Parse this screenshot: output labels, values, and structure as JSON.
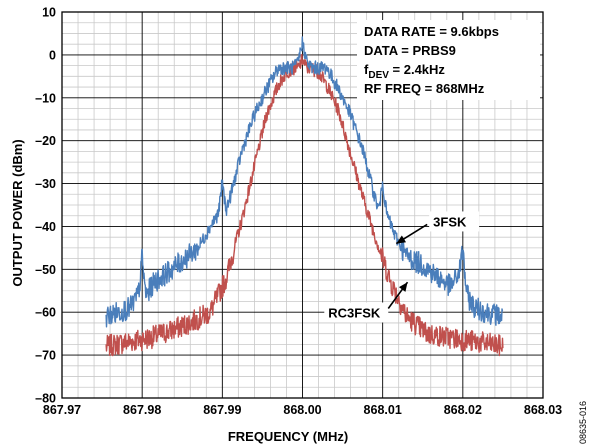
{
  "chart_data": {
    "type": "line",
    "xlabel": "FREQUENCY (MHz)",
    "ylabel": "OUTPUT POWER (dBm)",
    "xlim": [
      867.97,
      868.03
    ],
    "ylim": [
      -80,
      10
    ],
    "x_ticks": [
      "867.97",
      "867.98",
      "867.99",
      "868.00",
      "868.01",
      "868.02",
      "868.03"
    ],
    "y_ticks": [
      "10",
      "0",
      "–10",
      "–20",
      "–30",
      "–40",
      "–50",
      "–60",
      "–70",
      "–80"
    ],
    "grid": true,
    "minor_grid": true,
    "info_lines": [
      {
        "main": "DATA RATE = 9.6kbps",
        "sub": "",
        "rest": ""
      },
      {
        "main": "DATA = PRBS9",
        "sub": "",
        "rest": ""
      },
      {
        "main": "f",
        "sub": "DEV",
        "rest": " = 2.4kHz"
      },
      {
        "main": "RF FREQ = 868MHz",
        "sub": "",
        "rest": ""
      }
    ],
    "figure_id": "08635-016",
    "series": [
      {
        "name": "3FSK",
        "color": "#4a7ebb",
        "x": [
          867.9755,
          867.977,
          867.9785,
          867.9795,
          867.9798,
          867.98,
          867.9802,
          867.9805,
          867.9815,
          867.983,
          867.985,
          867.987,
          867.9885,
          867.9895,
          867.9898,
          867.99,
          867.9902,
          867.9905,
          867.991,
          867.9925,
          867.994,
          867.9955,
          867.997,
          867.998,
          867.9988,
          867.9994,
          868.0,
          868.0006,
          868.0012,
          868.002,
          868.003,
          868.0045,
          868.006,
          868.0075,
          868.009,
          868.0095,
          868.0098,
          868.01,
          868.0102,
          868.0105,
          868.0115,
          868.013,
          868.015,
          868.017,
          868.0185,
          868.0195,
          868.0198,
          868.02,
          868.0202,
          868.0205,
          868.0215,
          868.023,
          868.025
        ],
        "y": [
          -61,
          -60,
          -59,
          -56,
          -52,
          -46,
          -52,
          -56,
          -53,
          -51,
          -48,
          -45,
          -40,
          -37,
          -33,
          -29,
          -33,
          -36,
          -33,
          -22,
          -14,
          -8,
          -3,
          -3,
          -3,
          -2,
          3,
          -2,
          -3,
          -3,
          -3,
          -8,
          -14,
          -22,
          -33,
          -36,
          -33,
          -29,
          -33,
          -37,
          -42,
          -47,
          -49,
          -52,
          -54,
          -51,
          -48,
          -45,
          -50,
          -56,
          -59,
          -60,
          -61
        ]
      },
      {
        "name": "RC3FSK",
        "color": "#c0504d",
        "x": [
          867.9755,
          867.978,
          867.981,
          867.984,
          867.9865,
          867.9885,
          867.9905,
          867.9925,
          867.994,
          867.9955,
          867.997,
          867.998,
          867.999,
          867.9995,
          868.0,
          868.0005,
          868.001,
          868.002,
          868.003,
          868.0045,
          868.006,
          868.0075,
          868.009,
          868.011,
          868.013,
          868.0155,
          868.0185,
          868.022,
          868.025
        ],
        "y": [
          -68,
          -67,
          -66,
          -64,
          -62,
          -60,
          -52,
          -38,
          -26,
          -14,
          -7,
          -4,
          -3,
          -3,
          -1,
          -3,
          -3,
          -4,
          -7,
          -13,
          -23,
          -33,
          -42,
          -53,
          -61,
          -65,
          -66,
          -67,
          -68
        ]
      }
    ],
    "callouts": [
      {
        "label": "3FSK",
        "x": 868.0163,
        "y": -40
      },
      {
        "label": "RC3FSK",
        "x": 868.0112,
        "y": -61
      }
    ]
  }
}
